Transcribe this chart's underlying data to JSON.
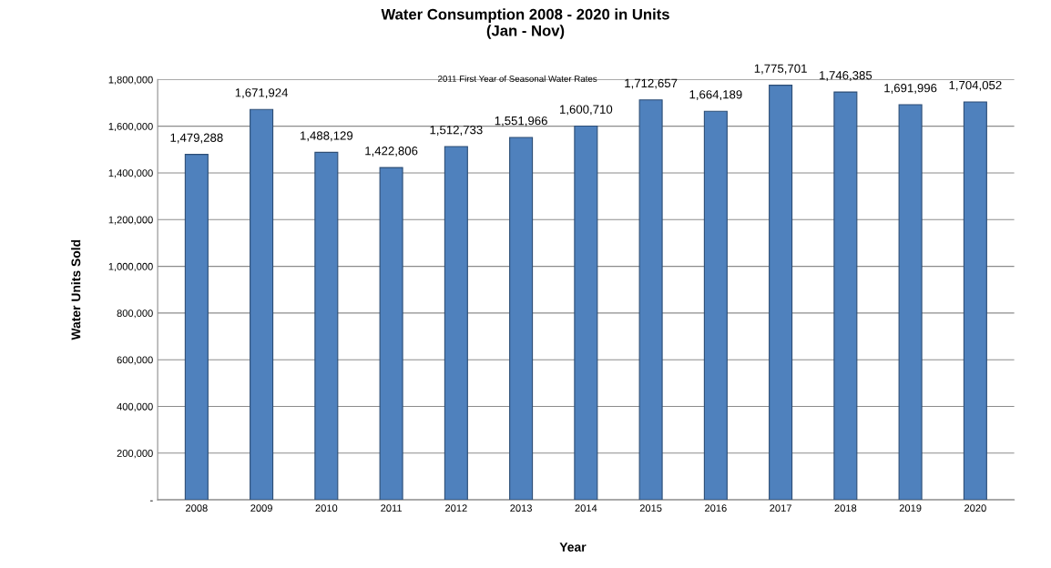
{
  "chart_data": {
    "type": "bar",
    "title": "Water Consumption 2008 - 2020 in Units\n(Jan - Nov)",
    "xlabel": "Year",
    "ylabel": "Water Units Sold",
    "categories": [
      "2008",
      "2009",
      "2010",
      "2011",
      "2012",
      "2013",
      "2014",
      "2015",
      "2016",
      "2017",
      "2018",
      "2019",
      "2020"
    ],
    "values": [
      1479288,
      1671924,
      1488129,
      1422806,
      1512733,
      1551966,
      1600710,
      1712657,
      1664189,
      1775701,
      1746385,
      1691996,
      1704052
    ],
    "value_labels": [
      "1,479,288",
      "1,671,924",
      "1,488,129",
      "1,422,806",
      "1,512,733",
      "1,551,966",
      "1,600,710",
      "1,712,657",
      "1,664,189",
      "1,775,701",
      "1,746,385",
      "1,691,996",
      "1,704,052"
    ],
    "color": "#4f81bd",
    "ylim": [
      0,
      1800000
    ],
    "yticks": [
      {
        "value": 0,
        "label": "-"
      },
      {
        "value": 200000,
        "label": "200,000"
      },
      {
        "value": 400000,
        "label": "400,000"
      },
      {
        "value": 600000,
        "label": "600,000"
      },
      {
        "value": 800000,
        "label": "800,000"
      },
      {
        "value": 1000000,
        "label": "1,000,000"
      },
      {
        "value": 1200000,
        "label": "1,200,000"
      },
      {
        "value": 1400000,
        "label": "1,400,000"
      },
      {
        "value": 1600000,
        "label": "1,600,000"
      },
      {
        "value": 1800000,
        "label": "1,800,000"
      }
    ],
    "grid": "y",
    "annotations": [
      "2011 First Year of Seasonal Water Rates"
    ]
  }
}
